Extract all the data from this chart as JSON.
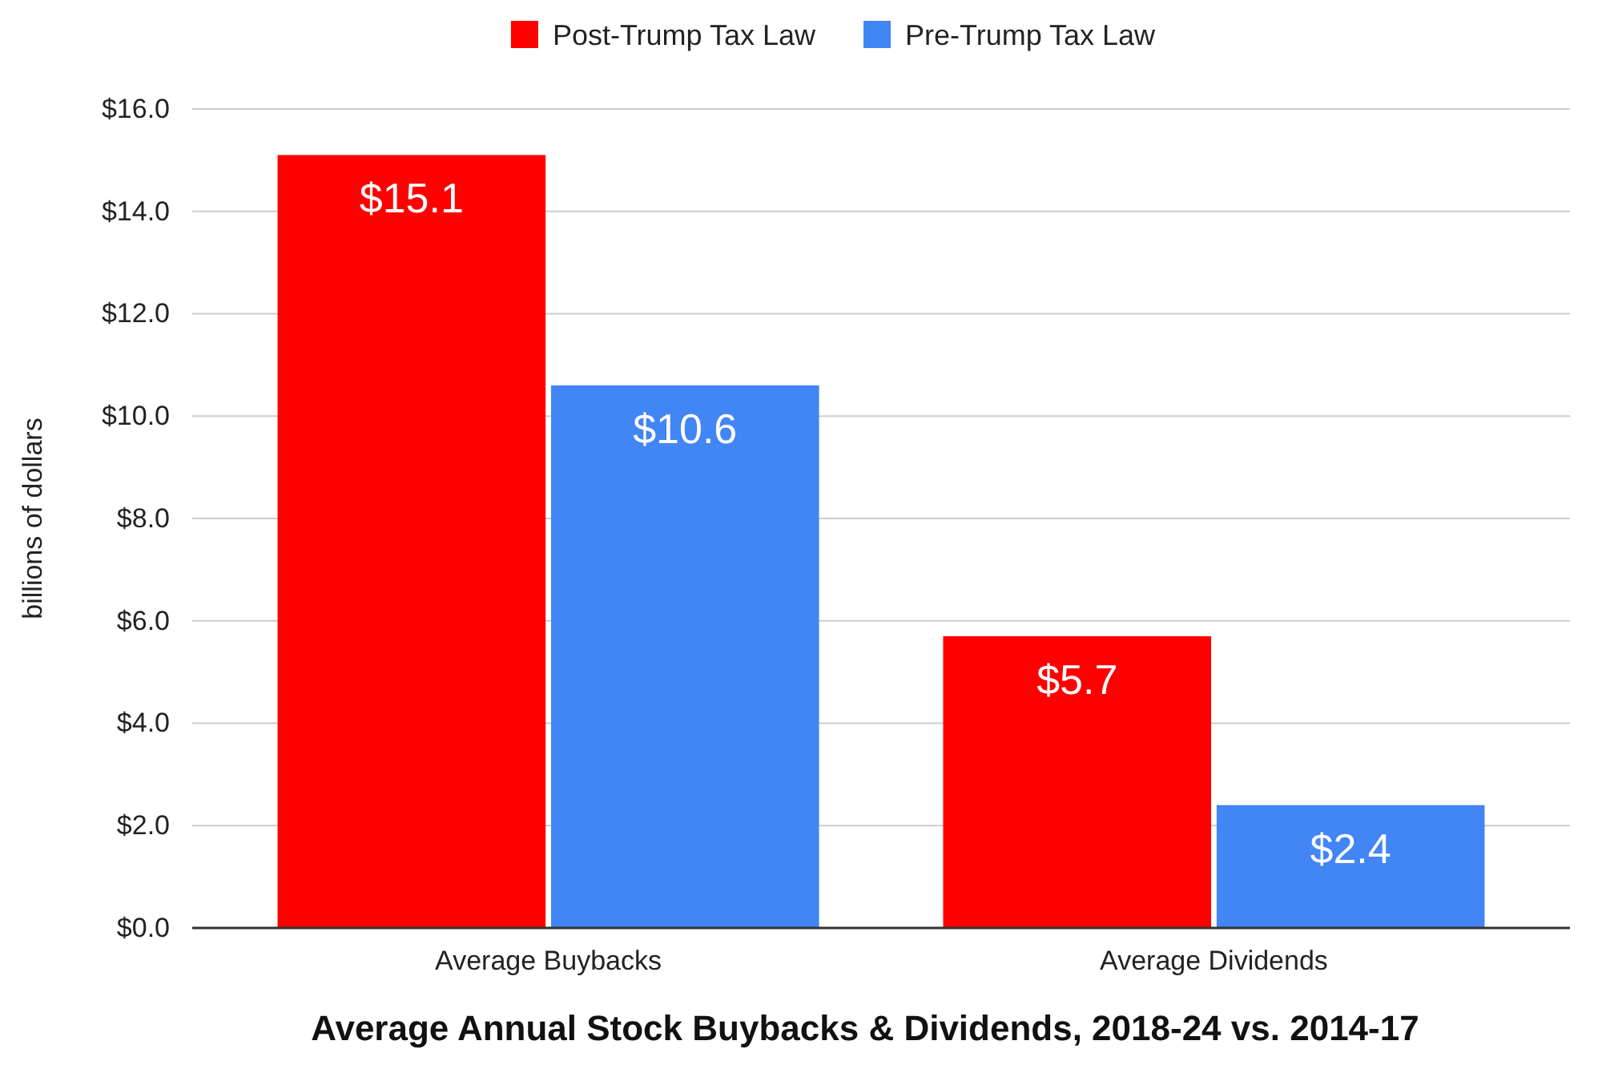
{
  "chart_data": {
    "type": "bar",
    "title": "Average Annual Stock Buybacks & Dividends, 2018-24 vs. 2014-17",
    "ylabel": "billions of dollars",
    "categories": [
      "Average Buybacks",
      "Average Dividends"
    ],
    "series": [
      {
        "name": "Post-Trump Tax Law",
        "color": "#ff0000",
        "values": [
          15.1,
          5.7
        ],
        "value_labels": [
          "$15.1",
          "$5.7"
        ]
      },
      {
        "name": "Pre-Trump Tax Law",
        "color": "#4285f4",
        "values": [
          10.6,
          2.4
        ],
        "value_labels": [
          "$10.6",
          "$2.4"
        ]
      }
    ],
    "ylim": [
      0,
      16
    ],
    "yticks": [
      {
        "value": 0,
        "label": "$0.0"
      },
      {
        "value": 2,
        "label": "$2.0"
      },
      {
        "value": 4,
        "label": "$4.0"
      },
      {
        "value": 6,
        "label": "$6.0"
      },
      {
        "value": 8,
        "label": "$8.0"
      },
      {
        "value": 10,
        "label": "$10.0"
      },
      {
        "value": 12,
        "label": "$12.0"
      },
      {
        "value": 14,
        "label": "$14.0"
      },
      {
        "value": 16,
        "label": "$16.0"
      }
    ],
    "grid": "y",
    "legend": "top"
  }
}
